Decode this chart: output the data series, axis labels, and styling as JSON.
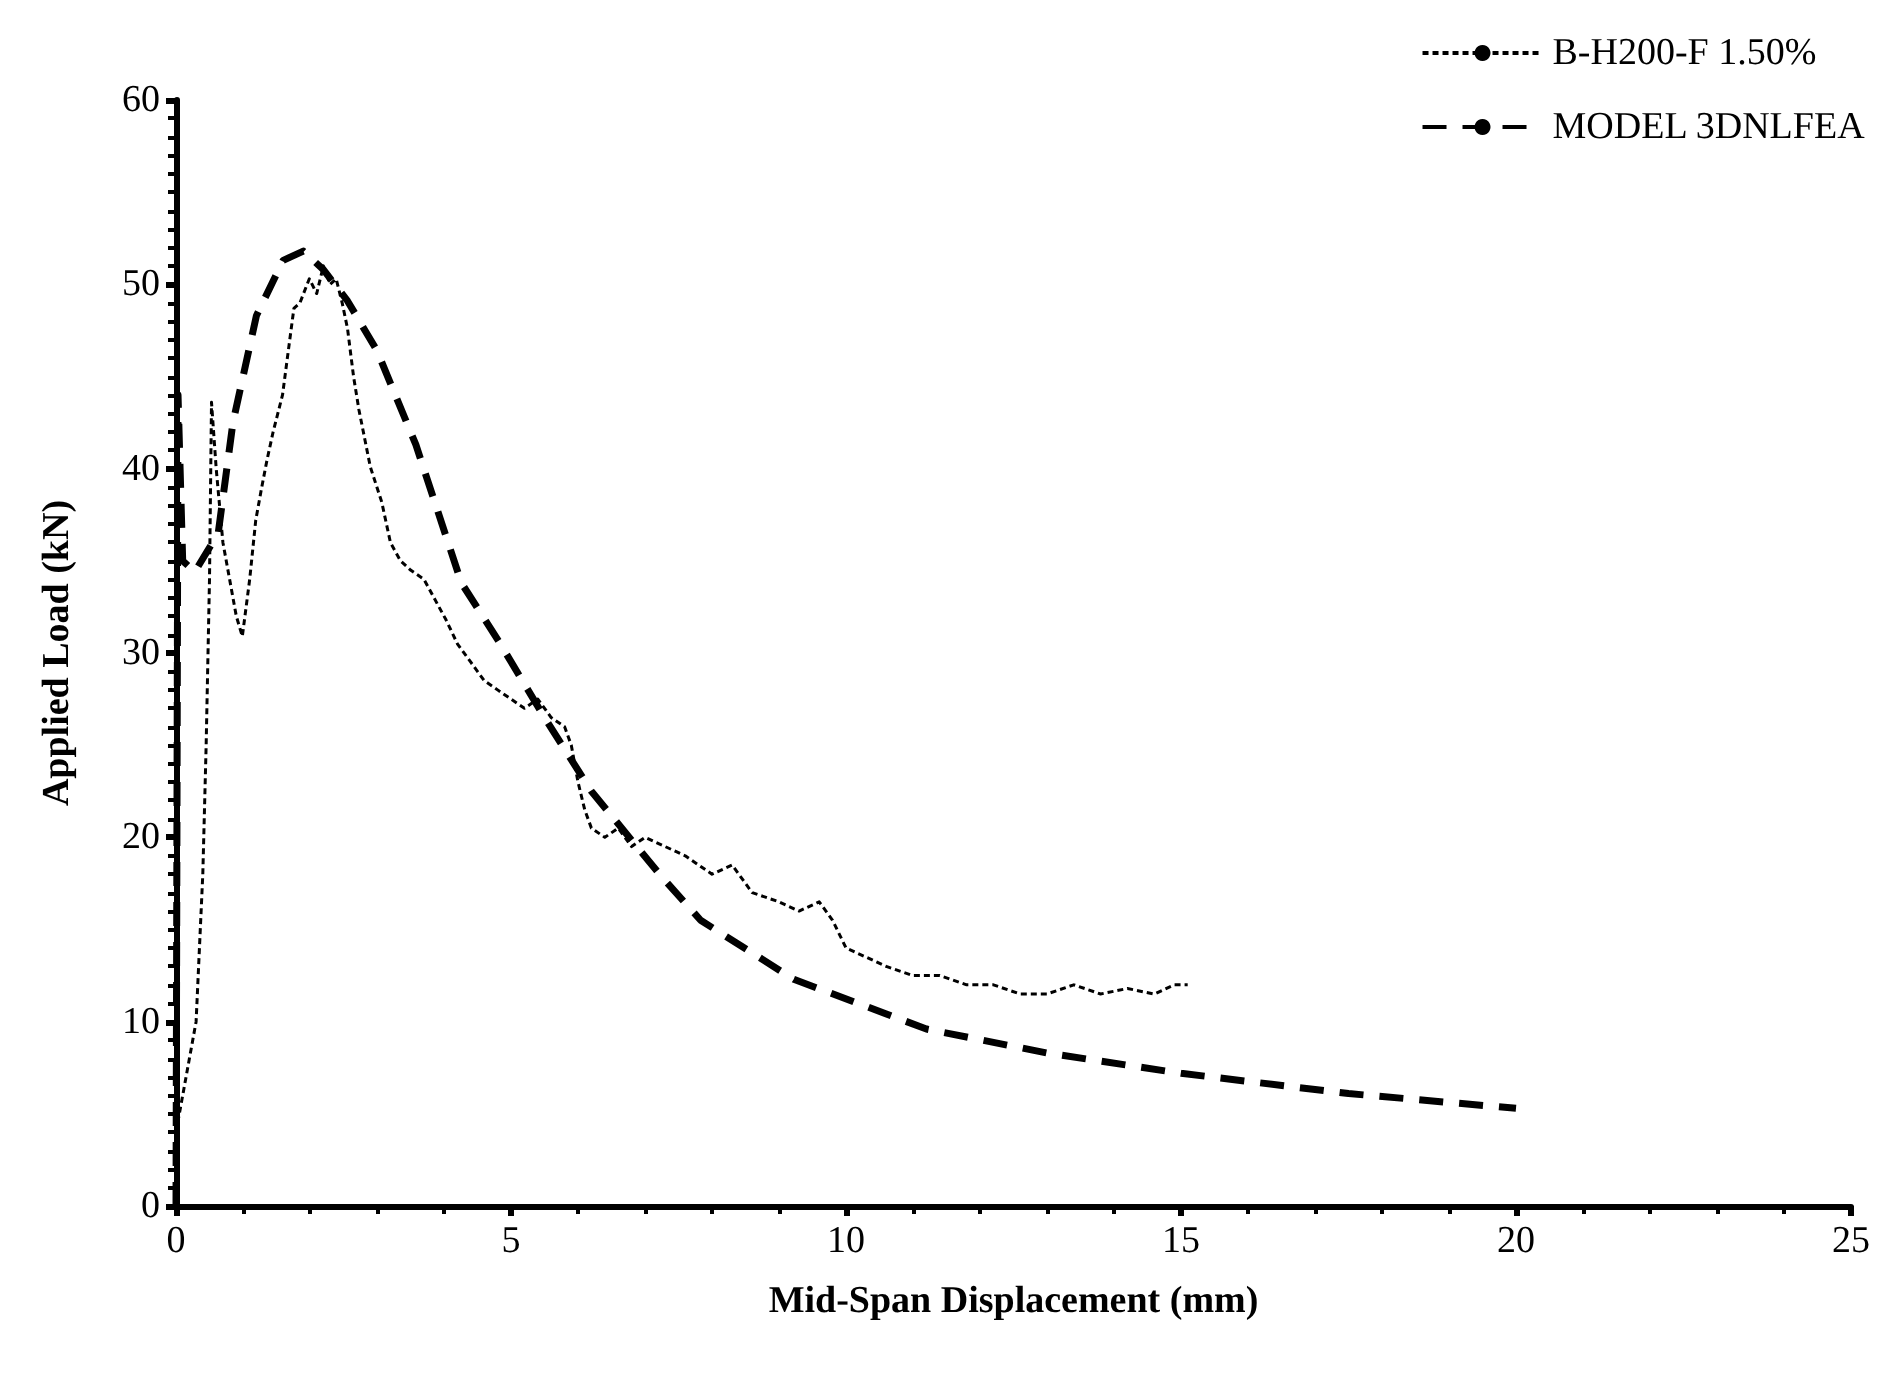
{
  "chart_data": {
    "type": "line",
    "xlabel": "Mid-Span Displacement (mm)",
    "ylabel": "Applied Load (kN)",
    "xlim": [
      0,
      25
    ],
    "xticks": [
      0,
      5,
      10,
      15,
      20,
      25
    ],
    "ylim": [
      0,
      60
    ],
    "yticks": [
      0,
      10,
      20,
      30,
      40,
      50,
      60
    ],
    "grid": false,
    "legend": "top right",
    "marker": "none",
    "series": [
      {
        "name": "B-H200-F 1.50%",
        "color": "#000000",
        "line_style": "dotted",
        "x": [
          0,
          0.1,
          0.2,
          0.3,
          0.4,
          0.45,
          0.5,
          0.53,
          0.6,
          0.7,
          0.8,
          0.9,
          0.99,
          1.1,
          1.19,
          1.28,
          1.36,
          1.45,
          1.59,
          1.68,
          1.76,
          1.85,
          1.99,
          2.1,
          2.2,
          2.3,
          2.39,
          2.48,
          2.56,
          2.65,
          2.73,
          2.9,
          3.07,
          3.2,
          3.35,
          3.5,
          3.7,
          3.85,
          4.03,
          4.2,
          4.4,
          4.6,
          4.8,
          5.0,
          5.2,
          5.4,
          5.6,
          5.8,
          5.9,
          6.0,
          6.1,
          6.2,
          6.4,
          6.6,
          6.8,
          7.0,
          7.3,
          7.6,
          8.0,
          8.3,
          8.6,
          9.0,
          9.3,
          9.6,
          9.8,
          10.0,
          10.3,
          10.6,
          11.0,
          11.4,
          11.8,
          12.2,
          12.6,
          13.0,
          13.4,
          13.8,
          14.2,
          14.6,
          14.9,
          15.1
        ],
        "values": [
          4,
          6,
          8,
          10,
          18,
          25,
          34,
          43.6,
          40,
          36,
          34,
          32,
          30.9,
          34,
          37.2,
          39,
          40.5,
          42,
          44,
          46.5,
          48.7,
          49,
          50.3,
          49.5,
          51,
          50,
          50.3,
          49,
          47.6,
          45,
          43.2,
          40.1,
          38.2,
          36,
          35,
          34.5,
          34,
          33,
          31.8,
          30.5,
          29.5,
          28.5,
          28,
          27.5,
          27,
          27.5,
          26.5,
          26,
          25,
          23,
          21.5,
          20.5,
          20,
          20.5,
          19.5,
          20,
          19.5,
          19,
          18,
          18.5,
          17,
          16.5,
          16,
          16.5,
          15.5,
          14,
          13.5,
          13,
          12.5,
          12.5,
          12,
          12,
          11.5,
          11.5,
          12,
          11.5,
          11.8,
          11.5,
          12,
          12
        ]
      },
      {
        "name": "MODEL 3DNLFEA",
        "color": "#000000",
        "line_style": "dashed",
        "x": [
          0,
          0.03,
          0.1,
          0.28,
          0.63,
          0.85,
          1.2,
          1.6,
          1.9,
          2.2,
          2.56,
          3.0,
          3.58,
          4.26,
          4.84,
          5.5,
          6.2,
          7.24,
          7.83,
          9.22,
          11.2,
          13.0,
          15.0,
          17.5,
          20.0
        ],
        "values": [
          0,
          44,
          35,
          34.4,
          36.5,
          42.5,
          48.3,
          51.3,
          51.8,
          50.8,
          49.1,
          46.4,
          41.3,
          33.8,
          30.5,
          26.5,
          22.5,
          17.9,
          15.5,
          12.3,
          9.6,
          8.3,
          7.2,
          6.1,
          5.3
        ]
      }
    ]
  }
}
